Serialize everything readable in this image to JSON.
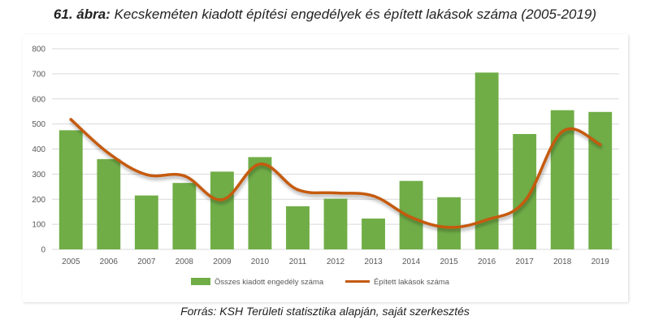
{
  "title": {
    "fig_label": "61. ábra:",
    "text": "Kecskeméten kiadott építési engedélyek és épített lakások száma (2005-2019)"
  },
  "source": "Forrás: KSH Területi statisztika alapján, saját szerkesztés",
  "colors": {
    "bar": "#70ad47",
    "line": "#c55a11",
    "grid": "#d9d9d9",
    "axis_text": "#595959"
  },
  "chart_data": {
    "type": "bar",
    "categories": [
      "2005",
      "2006",
      "2007",
      "2008",
      "2009",
      "2010",
      "2011",
      "2012",
      "2013",
      "2014",
      "2015",
      "2016",
      "2017",
      "2018",
      "2019"
    ],
    "ylim": [
      0,
      800
    ],
    "yticks": [
      0,
      100,
      200,
      300,
      400,
      500,
      600,
      700,
      800
    ],
    "grid": true,
    "legend_position": "bottom",
    "series": [
      {
        "name": "Összes kiadott engedély száma",
        "type": "bar",
        "values": [
          475,
          360,
          215,
          265,
          310,
          368,
          172,
          202,
          123,
          273,
          208,
          705,
          460,
          555,
          548
        ]
      },
      {
        "name": "Épített lakások száma",
        "type": "line",
        "values": [
          518,
          383,
          298,
          293,
          198,
          340,
          238,
          225,
          213,
          128,
          88,
          118,
          192,
          470,
          418
        ]
      }
    ]
  }
}
